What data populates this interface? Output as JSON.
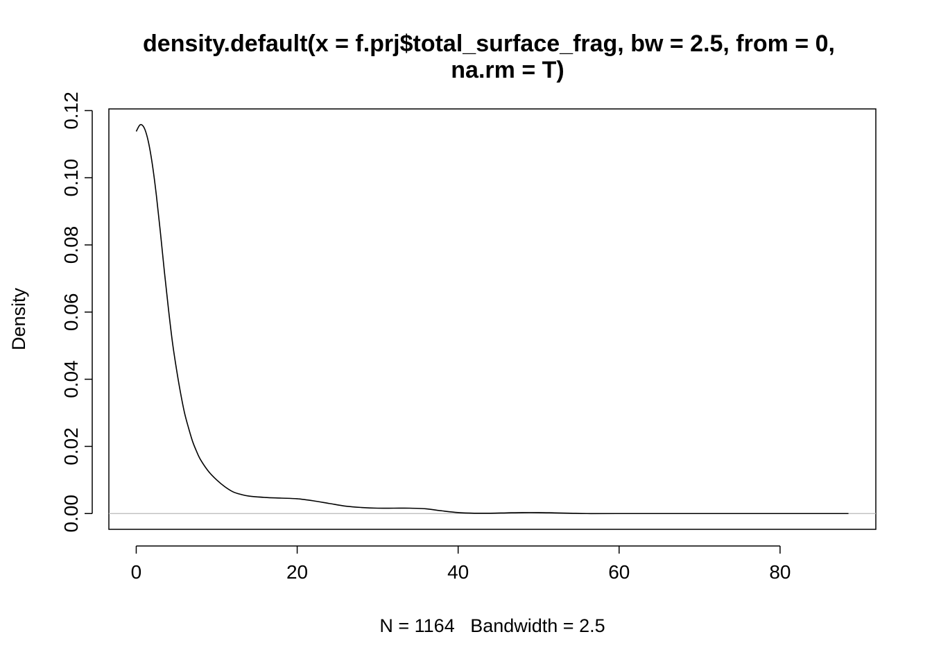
{
  "chart_data": {
    "type": "line",
    "title_line1": "density.default(x = f.prj$total_surface_frag, bw = 2.5, from = 0,",
    "title_line2": "na.rm = T)",
    "xlabel": "N = 1164   Bandwidth = 2.5",
    "ylabel": "Density",
    "xlim": [
      -3.4,
      91.9
    ],
    "ylim": [
      -0.0047,
      0.1205
    ],
    "x_ticks": [
      0,
      20,
      40,
      60,
      80
    ],
    "y_ticks": [
      0.0,
      0.02,
      0.04,
      0.06,
      0.08,
      0.1,
      0.12
    ],
    "x_tick_labels": [
      "0",
      "20",
      "40",
      "60",
      "80"
    ],
    "y_tick_labels": [
      "0.00",
      "0.02",
      "0.04",
      "0.06",
      "0.08",
      "0.10",
      "0.12"
    ],
    "zero_line": true,
    "series": [
      {
        "x": [
          0,
          0.5,
          1,
          1.5,
          2,
          2.5,
          3,
          3.5,
          4,
          4.5,
          5,
          5.5,
          6,
          6.5,
          7,
          7.5,
          8,
          9,
          10,
          11,
          12,
          13,
          14,
          16,
          18,
          20,
          22,
          24,
          26,
          28,
          30,
          32,
          34,
          36,
          38,
          40,
          42,
          44,
          46,
          48,
          50,
          52,
          54,
          56,
          60,
          70,
          80,
          88.5
        ],
        "y": [
          0.1138,
          0.1158,
          0.1148,
          0.1108,
          0.104,
          0.0948,
          0.0838,
          0.072,
          0.061,
          0.051,
          0.043,
          0.036,
          0.03,
          0.0255,
          0.0215,
          0.0185,
          0.016,
          0.0125,
          0.01,
          0.008,
          0.0065,
          0.0057,
          0.0052,
          0.0048,
          0.0046,
          0.0044,
          0.0038,
          0.003,
          0.0022,
          0.0018,
          0.0016,
          0.0016,
          0.0016,
          0.0014,
          0.0008,
          0.0003,
          0.0001,
          0.0001,
          0.0002,
          0.0003,
          0.0003,
          0.0002,
          0.0001,
          0.0,
          0.0,
          0.0,
          0.0,
          0.0
        ]
      }
    ]
  }
}
